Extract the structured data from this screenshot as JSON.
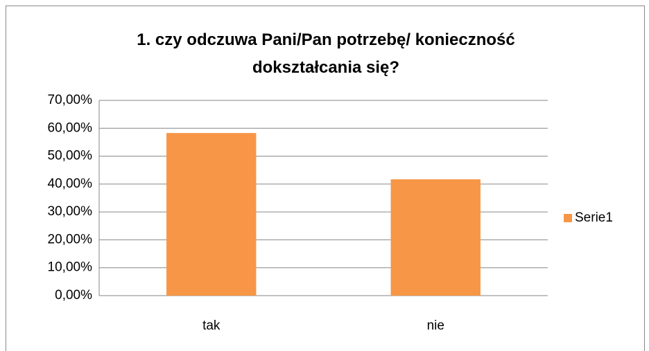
{
  "chart_data": {
    "type": "bar",
    "title": "1. czy odczuwa Pani/Pan potrzebę/ konieczność dokształcania się?",
    "categories": [
      "tak",
      "nie"
    ],
    "series": [
      {
        "name": "Serie1",
        "color": "#f79646",
        "values": [
          58.3,
          41.7
        ]
      }
    ],
    "ylim": [
      0,
      70
    ],
    "yticks": [
      {
        "value": 0,
        "label": "0,00%"
      },
      {
        "value": 10,
        "label": "10,00%"
      },
      {
        "value": 20,
        "label": "20,00%"
      },
      {
        "value": 30,
        "label": "30,00%"
      },
      {
        "value": 40,
        "label": "40,00%"
      },
      {
        "value": 50,
        "label": "50,00%"
      },
      {
        "value": 60,
        "label": "60,00%"
      },
      {
        "value": 70,
        "label": "70,00%"
      }
    ],
    "grid": true,
    "legend": "right"
  }
}
